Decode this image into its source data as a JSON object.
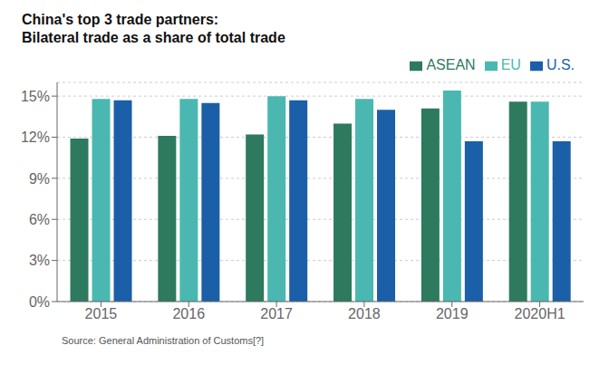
{
  "chart_data": {
    "type": "bar",
    "title": "China's top 3 trade partners:",
    "subtitle": "Bilateral trade as a share of total trade",
    "categories": [
      "2015",
      "2016",
      "2017",
      "2018",
      "2019",
      "2020H1"
    ],
    "series": [
      {
        "name": "ASEAN",
        "color": "#2d7a5f",
        "values": [
          11.9,
          12.1,
          12.2,
          13.0,
          14.1,
          14.6
        ]
      },
      {
        "name": "EU",
        "color": "#4ab8b0",
        "values": [
          14.8,
          14.8,
          15.0,
          14.8,
          15.4,
          14.6
        ]
      },
      {
        "name": "U.S.",
        "color": "#1a5fa8",
        "values": [
          14.7,
          14.5,
          14.7,
          14.0,
          11.7,
          11.7
        ]
      }
    ],
    "ylim": [
      0,
      16
    ],
    "yticks": [
      {
        "value": 0,
        "label": "0%"
      },
      {
        "value": 3,
        "label": "3%"
      },
      {
        "value": 6,
        "label": "6%"
      },
      {
        "value": 9,
        "label": "9%"
      },
      {
        "value": 12,
        "label": "12%"
      },
      {
        "value": 15,
        "label": "15%"
      }
    ],
    "grid": true,
    "legend": "upper right",
    "annotations": [
      "Source: General Administration of Customs[?]"
    ]
  }
}
